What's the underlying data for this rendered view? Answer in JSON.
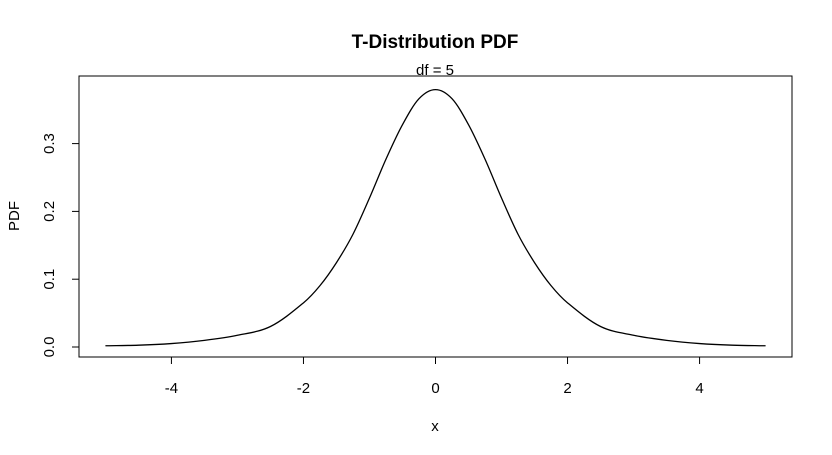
{
  "chart_data": {
    "type": "line",
    "title": "T-Distribution PDF",
    "subtitle": "df = 5",
    "xlabel": "x",
    "ylabel": "PDF",
    "df": 5,
    "xlim": [
      -5,
      5
    ],
    "ylim": [
      0,
      0.38
    ],
    "x_ticks": [
      -4,
      -2,
      0,
      2,
      4
    ],
    "x_tick_labels": [
      "-4",
      "-2",
      "0",
      "2",
      "4"
    ],
    "y_ticks": [
      0.0,
      0.1,
      0.2,
      0.3
    ],
    "y_tick_labels": [
      "0.0",
      "0.1",
      "0.2",
      "0.3"
    ],
    "grid": false,
    "legend": "none",
    "series": [
      {
        "color": "#000000",
        "x": [
          -5,
          -4.5,
          -4,
          -3.5,
          -3,
          -2.5,
          -2,
          -1.75,
          -1.5,
          -1.25,
          -1,
          -0.75,
          -0.5,
          -0.25,
          0,
          0.25,
          0.5,
          0.75,
          1,
          1.25,
          1.5,
          1.75,
          2,
          2.5,
          3,
          3.5,
          4,
          4.5,
          5
        ],
        "y": [
          0.0018,
          0.0027,
          0.0051,
          0.0098,
          0.0173,
          0.0302,
          0.0651,
          0.0905,
          0.1245,
          0.1663,
          0.2197,
          0.2771,
          0.3279,
          0.3662,
          0.3796,
          0.3662,
          0.3279,
          0.2771,
          0.2197,
          0.1663,
          0.1245,
          0.0905,
          0.0651,
          0.0302,
          0.0173,
          0.0098,
          0.0051,
          0.0027,
          0.0018
        ]
      }
    ]
  }
}
